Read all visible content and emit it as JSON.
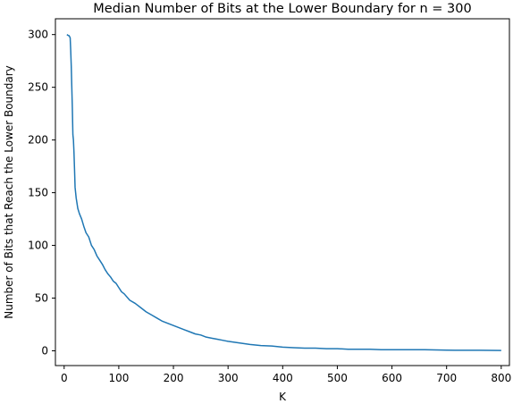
{
  "chart_data": {
    "type": "line",
    "title": "Median Number of Bits at the Lower Boundary for n = 300",
    "xlabel": "K",
    "ylabel": "Number of Bits that Reach the Lower Boundary",
    "xlim": [
      -16,
      815
    ],
    "ylim": [
      -14,
      315
    ],
    "xticks": [
      0,
      100,
      200,
      300,
      400,
      500,
      600,
      700,
      800
    ],
    "yticks": [
      0,
      50,
      100,
      150,
      200,
      250,
      300
    ],
    "grid": false,
    "series": [
      {
        "color": "#1f77b4",
        "x": [
          5,
          8,
          9,
          10,
          11,
          12,
          13,
          14,
          15,
          16,
          17,
          18,
          19,
          20,
          22,
          25,
          28,
          32,
          36,
          40,
          45,
          50,
          55,
          60,
          65,
          70,
          75,
          80,
          85,
          90,
          95,
          100,
          105,
          110,
          120,
          130,
          140,
          150,
          160,
          170,
          180,
          190,
          200,
          210,
          220,
          230,
          240,
          250,
          260,
          270,
          280,
          290,
          300,
          320,
          340,
          360,
          380,
          400,
          420,
          440,
          460,
          480,
          500,
          520,
          540,
          560,
          580,
          600,
          620,
          640,
          660,
          680,
          700,
          720,
          740,
          760,
          780,
          800
        ],
        "y": [
          300,
          299,
          299,
          298,
          297,
          285,
          270,
          250,
          230,
          205,
          200,
          188,
          172,
          155,
          145,
          135,
          130,
          125,
          118,
          112,
          108,
          100,
          96,
          90,
          86,
          82,
          77,
          73,
          70,
          66,
          64,
          60,
          56,
          54,
          48,
          45,
          41,
          37,
          34,
          31,
          28,
          26,
          24,
          22,
          20,
          18,
          16,
          15,
          13,
          12,
          11,
          10,
          9,
          7.5,
          6,
          5,
          4.5,
          3.5,
          3,
          2.5,
          2.5,
          2,
          2,
          1.5,
          1.5,
          1.5,
          1,
          1,
          1,
          1,
          1,
          0.8,
          0.6,
          0.5,
          0.5,
          0.5,
          0.4,
          0.3
        ]
      }
    ]
  }
}
